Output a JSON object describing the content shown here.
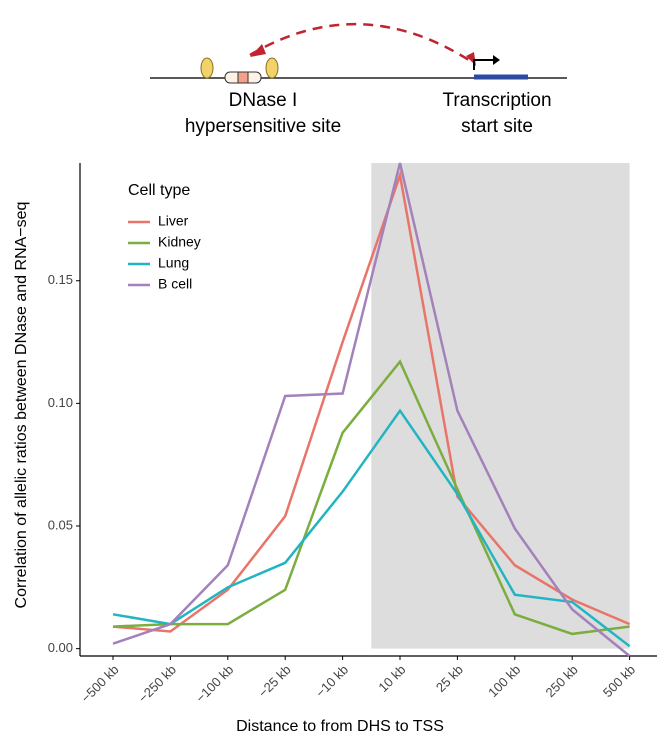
{
  "diagram": {
    "left_label": [
      "DNase I",
      "hypersensitive site"
    ],
    "right_label": [
      "Transcription",
      "start site"
    ]
  },
  "chart_data": {
    "type": "line",
    "x_label": "Distance to from DHS to TSS",
    "y_label": "Correlation of allelic ratios between DNase and RNA−seq",
    "legend_title": "Cell type",
    "categories": [
      "−500 kb",
      "−250 kb",
      "−100 kb",
      "−25 kb",
      "−10 kb",
      "10 kb",
      "25 kb",
      "100 kb",
      "250 kb",
      "500 kb"
    ],
    "series": [
      {
        "name": "Liver",
        "color": "#e8756a",
        "values": [
          0.009,
          0.007,
          0.024,
          0.054,
          0.125,
          0.193,
          0.062,
          0.034,
          0.02,
          0.01
        ]
      },
      {
        "name": "Kidney",
        "color": "#7cad3f",
        "values": [
          0.009,
          0.01,
          0.01,
          0.024,
          0.088,
          0.117,
          0.065,
          0.014,
          0.006,
          0.009
        ]
      },
      {
        "name": "Lung",
        "color": "#22b5c1",
        "values": [
          0.014,
          0.01,
          0.025,
          0.035,
          0.064,
          0.097,
          0.063,
          0.022,
          0.019,
          0.001
        ]
      },
      {
        "name": "B cell",
        "color": "#a382bb",
        "values": [
          0.002,
          0.01,
          0.034,
          0.103,
          0.104,
          0.198,
          0.097,
          0.049,
          0.016,
          -0.003
        ]
      }
    ],
    "ylim": [
      -0.003,
      0.198
    ],
    "yticks": [
      {
        "value": 0,
        "label": "0.00"
      },
      0.05,
      {
        "value": 0.1,
        "label": "0.10"
      },
      0.15
    ],
    "grid": false
  }
}
